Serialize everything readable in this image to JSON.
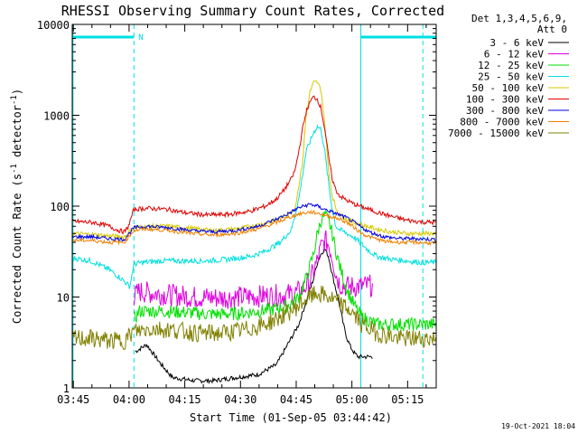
{
  "chart_data": {
    "type": "line",
    "title": "RHESSI Observing Summary Count Rates, Corrected",
    "xlabel": "Start Time (01-Sep-05 03:44:42)",
    "ylabel_prefix": "Corrected Count Rate (s",
    "ylabel_sup1": "-1",
    "ylabel_mid": " detector",
    "ylabel_sup2": "-1",
    "ylabel_suffix": ")",
    "xscale": "minutes since 03:44:42",
    "xlim": [
      0,
      98
    ],
    "ylim": [
      1,
      10000
    ],
    "yscale": "log",
    "x_ticks": [
      {
        "label": "03:45",
        "v": 0.3
      },
      {
        "label": "04:00",
        "v": 15.3
      },
      {
        "label": "04:15",
        "v": 30.3
      },
      {
        "label": "04:30",
        "v": 45.3
      },
      {
        "label": "04:45",
        "v": 60.3
      },
      {
        "label": "05:00",
        "v": 75.3
      },
      {
        "label": "05:15",
        "v": 90.3
      }
    ],
    "y_ticks": [
      {
        "label": "1",
        "v": 1
      },
      {
        "label": "10",
        "v": 10
      },
      {
        "label": "100",
        "v": 100
      },
      {
        "label": "1000",
        "v": 1000
      },
      {
        "label": "10000",
        "v": 10000
      }
    ],
    "legend_header": [
      "Det 1,3,4,5,6,9,",
      "Att 0"
    ],
    "night_segments": [
      {
        "x0": 0,
        "x1": 16.6,
        "label": "N"
      },
      {
        "x0": 77.7,
        "x1": 98,
        "label": ""
      }
    ],
    "boundary_lines": [
      0.2,
      16.6,
      77.7,
      94.4
    ],
    "series": [
      {
        "name": "3 - 6 keV",
        "color": "#000000",
        "points": [
          [
            17,
            2.5
          ],
          [
            20,
            3
          ],
          [
            24,
            1.8
          ],
          [
            27,
            1.3
          ],
          [
            33,
            1.2
          ],
          [
            38,
            1.2
          ],
          [
            44,
            1.3
          ],
          [
            50,
            1.4
          ],
          [
            55,
            1.8
          ],
          [
            58,
            3
          ],
          [
            61,
            5
          ],
          [
            63,
            9
          ],
          [
            65,
            16
          ],
          [
            66,
            24
          ],
          [
            67,
            30
          ],
          [
            68,
            34
          ],
          [
            69,
            28
          ],
          [
            70,
            18
          ],
          [
            71,
            12
          ],
          [
            72,
            8
          ],
          [
            73,
            5
          ],
          [
            74,
            3.5
          ],
          [
            75,
            2.8
          ],
          [
            76,
            2.4
          ],
          [
            77,
            2.2
          ],
          [
            81,
            2.2
          ]
        ]
      },
      {
        "name": "6 - 12 keV",
        "color": "#e000e0",
        "points": [
          [
            16.6,
            10
          ],
          [
            18,
            11.5
          ],
          [
            22,
            11
          ],
          [
            27,
            10.5
          ],
          [
            33,
            10
          ],
          [
            40,
            9.8
          ],
          [
            46,
            10
          ],
          [
            52,
            10.3
          ],
          [
            57,
            10.5
          ],
          [
            60,
            11
          ],
          [
            62,
            12
          ],
          [
            64,
            15
          ],
          [
            66,
            25
          ],
          [
            67,
            35
          ],
          [
            68,
            42
          ],
          [
            69,
            38
          ],
          [
            70,
            28
          ],
          [
            71,
            18
          ],
          [
            72,
            14
          ],
          [
            74,
            13
          ],
          [
            77,
            13
          ],
          [
            80,
            13.5
          ],
          [
            81,
            13
          ]
        ]
      },
      {
        "name": "12 - 25 keV",
        "color": "#00e000",
        "points": [
          [
            16.6,
            5.6
          ],
          [
            18,
            7
          ],
          [
            24,
            7
          ],
          [
            30,
            6.8
          ],
          [
            36,
            6.5
          ],
          [
            42,
            6.5
          ],
          [
            48,
            6.8
          ],
          [
            54,
            7.3
          ],
          [
            58,
            8
          ],
          [
            61,
            10
          ],
          [
            63,
            16
          ],
          [
            65,
            30
          ],
          [
            66,
            50
          ],
          [
            67,
            70
          ],
          [
            68,
            80
          ],
          [
            69,
            70
          ],
          [
            70,
            50
          ],
          [
            71,
            32
          ],
          [
            72,
            22
          ],
          [
            73,
            16
          ],
          [
            74,
            12
          ],
          [
            76,
            8
          ],
          [
            78,
            6
          ],
          [
            80,
            5.5
          ],
          [
            82,
            5
          ],
          [
            87,
            5
          ],
          [
            92,
            5
          ],
          [
            98,
            5
          ]
        ]
      },
      {
        "name": "25 - 50 keV",
        "color": "#00e0e0",
        "points": [
          [
            0,
            27
          ],
          [
            5,
            25
          ],
          [
            10,
            20
          ],
          [
            14,
            15
          ],
          [
            15.5,
            13
          ],
          [
            16.6,
            23
          ],
          [
            19,
            24
          ],
          [
            24,
            25
          ],
          [
            30,
            25
          ],
          [
            36,
            25
          ],
          [
            42,
            26
          ],
          [
            48,
            28
          ],
          [
            52,
            32
          ],
          [
            56,
            40
          ],
          [
            59,
            55
          ],
          [
            61,
            120
          ],
          [
            63,
            400
          ],
          [
            65,
            650
          ],
          [
            66,
            750
          ],
          [
            67,
            700
          ],
          [
            68,
            400
          ],
          [
            69,
            180
          ],
          [
            70,
            90
          ],
          [
            71,
            60
          ],
          [
            72,
            55
          ],
          [
            74,
            50
          ],
          [
            76,
            45
          ],
          [
            78,
            38
          ],
          [
            80,
            32
          ],
          [
            82,
            28
          ],
          [
            86,
            26
          ],
          [
            90,
            25
          ],
          [
            94,
            24
          ],
          [
            98,
            24
          ]
        ]
      },
      {
        "name": "50 - 100 keV",
        "color": "#d8c800",
        "points": [
          [
            0,
            50
          ],
          [
            5,
            49
          ],
          [
            10,
            47
          ],
          [
            14,
            46
          ],
          [
            16.6,
            58
          ],
          [
            20,
            60
          ],
          [
            26,
            60
          ],
          [
            32,
            57
          ],
          [
            38,
            54
          ],
          [
            44,
            56
          ],
          [
            50,
            62
          ],
          [
            55,
            70
          ],
          [
            58,
            80
          ],
          [
            60,
            95
          ],
          [
            62,
            300
          ],
          [
            63,
            1000
          ],
          [
            64,
            1800
          ],
          [
            65,
            2300
          ],
          [
            66,
            2300
          ],
          [
            67,
            1900
          ],
          [
            68,
            800
          ],
          [
            69,
            250
          ],
          [
            70,
            130
          ],
          [
            71,
            95
          ],
          [
            72,
            80
          ],
          [
            74,
            72
          ],
          [
            76,
            66
          ],
          [
            78,
            62
          ],
          [
            82,
            56
          ],
          [
            86,
            52
          ],
          [
            90,
            50
          ],
          [
            94,
            50
          ],
          [
            98,
            50
          ]
        ]
      },
      {
        "name": "100 - 300 keV",
        "color": "#e00000",
        "points": [
          [
            0,
            68
          ],
          [
            6,
            66
          ],
          [
            10,
            60
          ],
          [
            12,
            55
          ],
          [
            14,
            52
          ],
          [
            15,
            58
          ],
          [
            16.6,
            92
          ],
          [
            20,
            95
          ],
          [
            26,
            92
          ],
          [
            30,
            85
          ],
          [
            36,
            80
          ],
          [
            42,
            81
          ],
          [
            48,
            88
          ],
          [
            52,
            100
          ],
          [
            55,
            120
          ],
          [
            57,
            150
          ],
          [
            59,
            200
          ],
          [
            60,
            250
          ],
          [
            61,
            400
          ],
          [
            62,
            700
          ],
          [
            63,
            1100
          ],
          [
            64,
            1400
          ],
          [
            65,
            1600
          ],
          [
            66,
            1500
          ],
          [
            67,
            1200
          ],
          [
            68,
            700
          ],
          [
            69,
            350
          ],
          [
            70,
            200
          ],
          [
            71,
            150
          ],
          [
            72,
            130
          ],
          [
            74,
            115
          ],
          [
            76,
            105
          ],
          [
            78,
            98
          ],
          [
            82,
            86
          ],
          [
            86,
            77
          ],
          [
            90,
            70
          ],
          [
            94,
            67
          ],
          [
            98,
            66
          ]
        ]
      },
      {
        "name": "300 - 800 keV",
        "color": "#0000e0",
        "points": [
          [
            0,
            46
          ],
          [
            5,
            46
          ],
          [
            10,
            44
          ],
          [
            14,
            43
          ],
          [
            16.6,
            58
          ],
          [
            20,
            60
          ],
          [
            26,
            58
          ],
          [
            32,
            54
          ],
          [
            38,
            52
          ],
          [
            44,
            54
          ],
          [
            50,
            60
          ],
          [
            55,
            72
          ],
          [
            58,
            82
          ],
          [
            61,
            96
          ],
          [
            64,
            105
          ],
          [
            66,
            100
          ],
          [
            68,
            92
          ],
          [
            70,
            86
          ],
          [
            72,
            80
          ],
          [
            74,
            74
          ],
          [
            76,
            66
          ],
          [
            78,
            58
          ],
          [
            80,
            52
          ],
          [
            84,
            46
          ],
          [
            88,
            44
          ],
          [
            92,
            44
          ],
          [
            98,
            43
          ]
        ]
      },
      {
        "name": "800 - 7000 keV",
        "color": "#f08000",
        "points": [
          [
            0,
            42
          ],
          [
            5,
            42
          ],
          [
            10,
            40
          ],
          [
            14,
            40
          ],
          [
            16.6,
            54
          ],
          [
            20,
            56
          ],
          [
            26,
            54
          ],
          [
            32,
            50
          ],
          [
            38,
            48
          ],
          [
            44,
            50
          ],
          [
            50,
            56
          ],
          [
            55,
            66
          ],
          [
            58,
            74
          ],
          [
            61,
            82
          ],
          [
            64,
            86
          ],
          [
            66,
            84
          ],
          [
            68,
            80
          ],
          [
            70,
            76
          ],
          [
            72,
            72
          ],
          [
            74,
            66
          ],
          [
            76,
            58
          ],
          [
            78,
            50
          ],
          [
            80,
            46
          ],
          [
            84,
            41
          ],
          [
            88,
            40
          ],
          [
            92,
            40
          ],
          [
            98,
            39
          ]
        ]
      },
      {
        "name": "7000 - 15000 keV",
        "color": "#808000",
        "points": [
          [
            0,
            3.5
          ],
          [
            5,
            3.5
          ],
          [
            10,
            3.3
          ],
          [
            14,
            3.3
          ],
          [
            16.6,
            4.2
          ],
          [
            22,
            4.5
          ],
          [
            28,
            4.3
          ],
          [
            34,
            4
          ],
          [
            40,
            4
          ],
          [
            46,
            4.3
          ],
          [
            52,
            5
          ],
          [
            56,
            6
          ],
          [
            60,
            7.5
          ],
          [
            63,
            9.5
          ],
          [
            66,
            11
          ],
          [
            69,
            10
          ],
          [
            72,
            8.5
          ],
          [
            75,
            7
          ],
          [
            78,
            5
          ],
          [
            82,
            4
          ],
          [
            88,
            3.5
          ],
          [
            94,
            3.5
          ],
          [
            98,
            3.5
          ]
        ]
      }
    ],
    "timestamp": "19-Oct-2021 18:04"
  }
}
